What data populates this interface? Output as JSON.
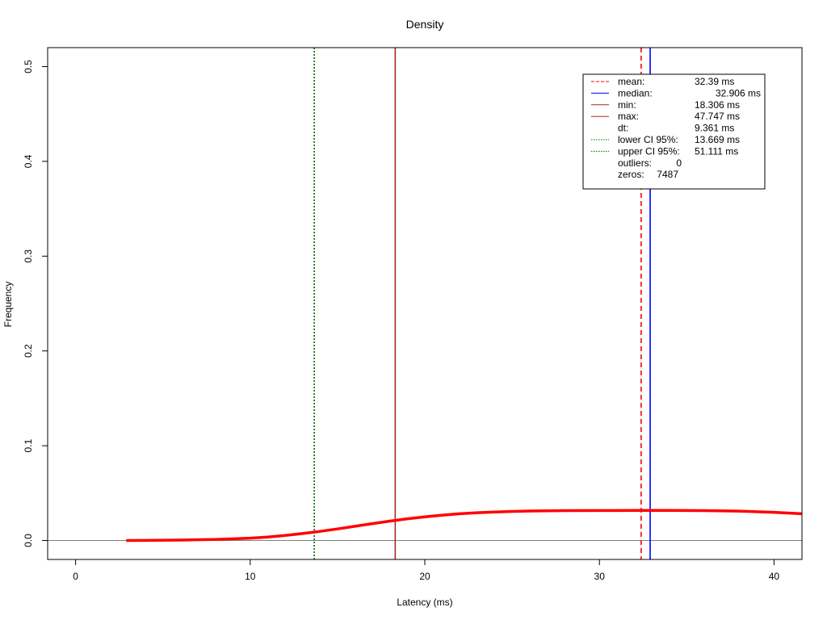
{
  "chart_data": {
    "type": "line",
    "title": "Density",
    "xlabel": "Latency (ms)",
    "ylabel": "Frequency",
    "xlim": [
      -1.6,
      41.6
    ],
    "ylim": [
      -0.02,
      0.52
    ],
    "xticks": [
      0,
      10,
      20,
      30,
      40
    ],
    "xtick_labels": [
      "0",
      "10",
      "20",
      "30",
      "40"
    ],
    "yticks": [
      0.0,
      0.1,
      0.2,
      0.3,
      0.4,
      0.5
    ],
    "ytick_labels": [
      "0.0",
      "0.1",
      "0.2",
      "0.3",
      "0.4",
      "0.5"
    ],
    "baseline": 0,
    "series": [
      {
        "color": "#ff0000",
        "x": [
          2.9,
          4,
          6,
          8,
          10,
          11,
          12,
          13,
          14,
          15,
          16,
          17,
          18,
          19,
          20,
          21,
          22,
          23,
          24,
          25,
          26,
          28,
          30,
          32,
          34,
          36,
          38,
          40,
          41.6
        ],
        "y": [
          0.0,
          0.0001,
          0.0004,
          0.0011,
          0.0025,
          0.0037,
          0.0053,
          0.0073,
          0.0096,
          0.0122,
          0.015,
          0.0178,
          0.0205,
          0.0229,
          0.025,
          0.0268,
          0.0282,
          0.0293,
          0.0301,
          0.0307,
          0.0311,
          0.0315,
          0.0316,
          0.0317,
          0.0317,
          0.0315,
          0.031,
          0.0297,
          0.0282
        ]
      }
    ],
    "vlines": [
      {
        "label": "mean",
        "x": 32.39,
        "color": "#ff0000",
        "style": "dashed"
      },
      {
        "label": "median",
        "x": 32.906,
        "color": "#0000ff",
        "style": "solid"
      },
      {
        "label": "min",
        "x": 18.306,
        "color": "#a52a2a",
        "style": "solid"
      },
      {
        "label": "max",
        "x": 47.747,
        "color": "#a52a2a",
        "style": "solid"
      },
      {
        "label": "lower CI 95%",
        "x": 13.669,
        "color": "#006400",
        "style": "dotted"
      },
      {
        "label": "upper CI 95%",
        "x": 51.111,
        "color": "#006400",
        "style": "dotted"
      }
    ],
    "legend": {
      "placement": "top-right",
      "entries": [
        {
          "key": "mean:",
          "value": "32.39 ms",
          "color": "#ff0000",
          "style": "dashed"
        },
        {
          "key": "median:",
          "value": "32.906 ms",
          "color": "#0000ff",
          "style": "solid"
        },
        {
          "key": "min:",
          "value": "18.306 ms",
          "color": "#a52a2a",
          "style": "solid"
        },
        {
          "key": "max:",
          "value": "47.747 ms",
          "color": "#a52a2a",
          "style": "solid"
        },
        {
          "key": "dt:",
          "value": "9.361 ms",
          "color": "",
          "style": "none"
        },
        {
          "key": "lower CI 95%:",
          "value": "13.669 ms",
          "color": "#006400",
          "style": "dotted"
        },
        {
          "key": "upper CI 95%:",
          "value": "51.111 ms",
          "color": "#006400",
          "style": "dotted"
        },
        {
          "key": "outliers:",
          "value": "0",
          "color": "",
          "style": "none"
        },
        {
          "key": "zeros:",
          "value": "7487",
          "color": "",
          "style": "none"
        }
      ]
    }
  }
}
